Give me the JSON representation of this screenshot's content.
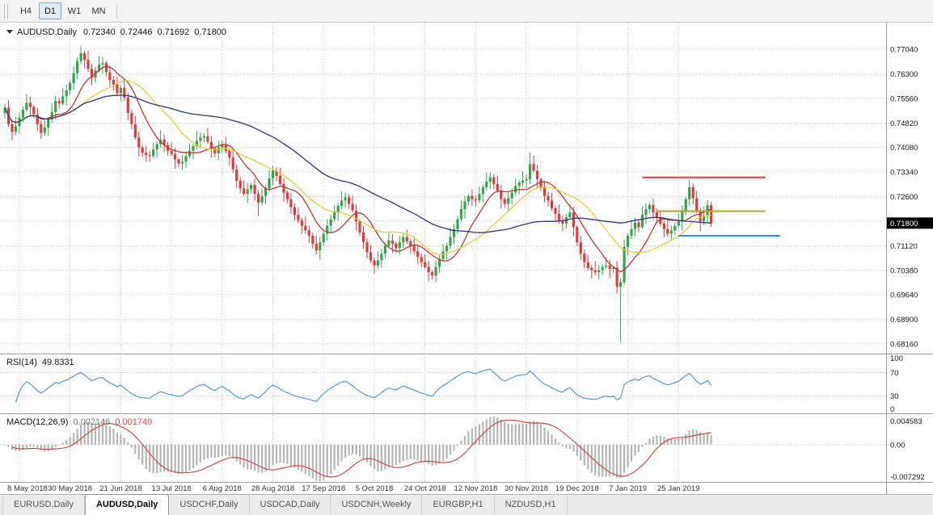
{
  "toolbar": {
    "buttons": [
      {
        "label": "H4",
        "active": false
      },
      {
        "label": "D1",
        "active": true
      },
      {
        "label": "W1",
        "active": false
      },
      {
        "label": "MN",
        "active": false
      }
    ]
  },
  "chart_header": {
    "symbol_period": "AUDUSD,Daily",
    "open": "0.72340",
    "high": "0.72446",
    "low": "0.71692",
    "close": "0.71800",
    "current_price": "0.71800"
  },
  "chart_data": {
    "type": "candlestick",
    "symbol": "AUDUSD",
    "timeframe": "Daily",
    "y_axis": {
      "ticks": [
        0.7704,
        0.763,
        0.7556,
        0.7482,
        0.7408,
        0.7334,
        0.726,
        0.7186,
        0.7112,
        0.7038,
        0.6964,
        0.689,
        0.6816
      ]
    },
    "x_axis": {
      "labels": [
        {
          "label": "8 May 2018",
          "bar": 4
        },
        {
          "label": "30 May 2018",
          "bar": 18
        },
        {
          "label": "21 Jun 2018",
          "bar": 32
        },
        {
          "label": "13 Jul 2018",
          "bar": 46
        },
        {
          "label": "6 Aug 2018",
          "bar": 60
        },
        {
          "label": "28 Aug 2018",
          "bar": 74
        },
        {
          "label": "17 Sep 2018",
          "bar": 88
        },
        {
          "label": "5 Oct 2018",
          "bar": 102
        },
        {
          "label": "24 Oct 2018",
          "bar": 116
        },
        {
          "label": "12 Nov 2018",
          "bar": 130
        },
        {
          "label": "30 Nov 2018",
          "bar": 144
        },
        {
          "label": "19 Dec 2018",
          "bar": 158
        },
        {
          "label": "7 Jan 2019",
          "bar": 172
        },
        {
          "label": "25 Jan 2019",
          "bar": 186
        }
      ]
    },
    "candles": {
      "open_rule": "previous_close",
      "first_open": 0.7512,
      "closes": [
        0.7528,
        0.7478,
        0.7455,
        0.7472,
        0.7498,
        0.7522,
        0.7543,
        0.753,
        0.7508,
        0.7478,
        0.7452,
        0.7468,
        0.7492,
        0.7515,
        0.7548,
        0.754,
        0.7562,
        0.758,
        0.7602,
        0.7632,
        0.7668,
        0.7692,
        0.7672,
        0.7645,
        0.7618,
        0.764,
        0.7658,
        0.7662,
        0.7635,
        0.7612,
        0.7598,
        0.7572,
        0.7588,
        0.7558,
        0.7512,
        0.7478,
        0.7438,
        0.7408,
        0.7392,
        0.7385,
        0.7382,
        0.7402,
        0.7418,
        0.7432,
        0.7415,
        0.7398,
        0.7388,
        0.7372,
        0.736,
        0.7365,
        0.7382,
        0.7398,
        0.7412,
        0.7428,
        0.7438,
        0.7442,
        0.7425,
        0.7405,
        0.739,
        0.7408,
        0.7418,
        0.7398,
        0.7378,
        0.7342,
        0.7308,
        0.7285,
        0.7268,
        0.7282,
        0.7295,
        0.7268,
        0.7242,
        0.7262,
        0.7285,
        0.7315,
        0.7338,
        0.7322,
        0.7298,
        0.7272,
        0.7252,
        0.7228,
        0.7205,
        0.7188,
        0.7172,
        0.7158,
        0.7142,
        0.7118,
        0.7098,
        0.7122,
        0.7148,
        0.7172,
        0.7192,
        0.7212,
        0.7232,
        0.7248,
        0.7258,
        0.7238,
        0.7218,
        0.7185,
        0.7152,
        0.7122,
        0.7092,
        0.7068,
        0.7052,
        0.7068,
        0.7088,
        0.7112,
        0.7128,
        0.7118,
        0.7105,
        0.7122,
        0.7138,
        0.7125,
        0.7112,
        0.7095,
        0.7078,
        0.7062,
        0.7048,
        0.7032,
        0.7022,
        0.7048,
        0.7072,
        0.7095,
        0.7112,
        0.7138,
        0.7162,
        0.7192,
        0.7222,
        0.7245,
        0.7262,
        0.7252,
        0.7248,
        0.7268,
        0.7288,
        0.7305,
        0.7318,
        0.7298,
        0.7278,
        0.7252,
        0.7238,
        0.7255,
        0.7272,
        0.7292,
        0.7302,
        0.7308,
        0.7312,
        0.7358,
        0.7338,
        0.7312,
        0.7288,
        0.7262,
        0.7248,
        0.7225,
        0.7208,
        0.7188,
        0.7178,
        0.7198,
        0.7212,
        0.7168,
        0.7122,
        0.7088,
        0.7062,
        0.7045,
        0.7038,
        0.7032,
        0.7038,
        0.7048,
        0.7052,
        0.7042,
        0.7046,
        0.6988,
        0.7002,
        0.7108,
        0.7142,
        0.7162,
        0.7182,
        0.7168,
        0.7205,
        0.7222,
        0.7235,
        0.7212,
        0.7198,
        0.7178,
        0.7162,
        0.7148,
        0.7158,
        0.7172,
        0.7185,
        0.7215,
        0.7252,
        0.7288,
        0.7255,
        0.7218,
        0.7185,
        0.7202,
        0.7234,
        0.718
      ],
      "wick_high_pips": [
        12,
        22,
        8,
        28,
        15,
        10,
        25,
        18,
        6,
        20,
        12,
        22,
        8,
        28,
        15,
        10,
        25,
        18,
        6,
        20,
        12,
        22,
        8,
        28,
        15,
        10,
        25,
        18,
        6,
        20,
        12,
        22,
        8,
        28,
        15,
        10,
        25,
        18,
        6,
        20,
        12,
        22,
        8,
        28,
        15,
        10,
        25,
        18,
        6,
        20,
        12,
        22,
        8,
        28,
        15,
        10,
        25,
        18,
        6,
        20,
        12,
        22,
        8,
        28,
        15,
        10,
        25,
        18,
        6,
        20,
        12,
        22,
        8,
        28,
        15,
        10,
        25,
        18,
        6,
        20,
        12,
        22,
        8,
        28,
        15,
        10,
        25,
        18,
        6,
        20,
        12,
        22,
        8,
        28,
        15,
        10,
        25,
        18,
        6,
        20,
        12,
        22,
        8,
        28,
        15,
        10,
        25,
        18,
        6,
        20,
        12,
        22,
        8,
        28,
        15,
        10,
        25,
        18,
        6,
        20,
        12,
        22,
        8,
        28,
        15,
        10,
        25,
        18,
        6,
        20,
        12,
        22,
        8,
        28,
        15,
        10,
        25,
        18,
        6,
        20,
        12,
        22,
        8,
        28,
        15,
        34,
        25,
        18,
        6,
        20,
        12,
        22,
        8,
        28,
        15,
        10,
        25,
        18,
        6,
        20,
        12,
        22,
        8,
        28,
        15,
        10,
        25,
        18,
        6,
        20,
        12,
        22,
        8,
        28,
        15,
        10,
        25,
        18,
        6,
        20,
        12,
        22,
        8,
        28,
        15,
        10,
        25,
        18,
        6,
        22,
        12,
        22,
        8,
        28,
        15,
        11
      ],
      "wick_low_pips": [
        18,
        8,
        25,
        10,
        22,
        15,
        6,
        28,
        12,
        20,
        18,
        8,
        25,
        10,
        22,
        15,
        6,
        28,
        12,
        20,
        18,
        8,
        25,
        10,
        22,
        15,
        6,
        28,
        12,
        20,
        18,
        8,
        25,
        10,
        22,
        15,
        6,
        28,
        12,
        20,
        18,
        8,
        25,
        10,
        22,
        15,
        6,
        28,
        12,
        20,
        18,
        8,
        25,
        10,
        22,
        15,
        6,
        28,
        12,
        20,
        18,
        8,
        25,
        10,
        22,
        15,
        6,
        28,
        12,
        20,
        40,
        8,
        25,
        10,
        22,
        15,
        6,
        28,
        12,
        20,
        18,
        8,
        25,
        10,
        22,
        15,
        13,
        28,
        12,
        20,
        18,
        8,
        25,
        10,
        22,
        15,
        6,
        28,
        12,
        20,
        18,
        8,
        25,
        10,
        22,
        15,
        6,
        28,
        12,
        20,
        18,
        8,
        25,
        10,
        22,
        15,
        6,
        28,
        12,
        20,
        18,
        8,
        25,
        10,
        22,
        15,
        6,
        28,
        12,
        20,
        18,
        8,
        25,
        10,
        22,
        15,
        6,
        28,
        12,
        20,
        18,
        8,
        25,
        10,
        22,
        15,
        6,
        28,
        12,
        20,
        18,
        8,
        25,
        10,
        22,
        15,
        6,
        28,
        12,
        20,
        18,
        8,
        25,
        10,
        22,
        15,
        6,
        28,
        12,
        20,
        168,
        8,
        25,
        10,
        22,
        15,
        6,
        28,
        12,
        20,
        18,
        8,
        25,
        10,
        22,
        15,
        6,
        28,
        12,
        20,
        18,
        8,
        30,
        10,
        22,
        11
      ]
    },
    "moving_averages": [
      {
        "type": "sma",
        "period": 10,
        "color": "#c43434"
      },
      {
        "type": "sma",
        "period": 21,
        "color": "#e3cd3a"
      },
      {
        "type": "sma",
        "period": 55,
        "color": "#2b3580"
      }
    ],
    "horizontal_lines": [
      {
        "price": 0.7318,
        "from_bar": 176,
        "to_bar": 210,
        "color": "#d64040"
      },
      {
        "price": 0.7216,
        "from_bar": 180,
        "to_bar": 210,
        "color": "#a8a832"
      },
      {
        "price": 0.7142,
        "from_bar": 186,
        "to_bar": 214,
        "color": "#2492ff"
      }
    ],
    "rsi": {
      "label": "RSI(14)",
      "value": "49.8331",
      "period": 14,
      "levels": [
        100,
        70,
        30,
        0
      ],
      "color": "#5599d8"
    },
    "macd": {
      "label": "MACD(12,26,9)",
      "value_main": "0.002146",
      "value_signal": "0.001749",
      "fast": 12,
      "slow": 26,
      "signal": 9,
      "axis_labels": {
        "top": "0.004583",
        "zero": "0.00",
        "bottom": "-0.007292"
      },
      "hist_color": "#b5b5b5",
      "signal_color": "#cf4b4b"
    },
    "colors": {
      "up": "#33a64c",
      "down": "#e23b3b",
      "badge_bg": "#000000",
      "badge_text": "#ffffff"
    }
  },
  "tabs": {
    "items": [
      {
        "label": "EURUSD,Daily",
        "active": false
      },
      {
        "label": "AUDUSD,Daily",
        "active": true
      },
      {
        "label": "USDCHF,Daily",
        "active": false
      },
      {
        "label": "USDCAD,Daily",
        "active": false
      },
      {
        "label": "USDCNH,Weekly",
        "active": false
      },
      {
        "label": "EURGBP,H1",
        "active": false
      },
      {
        "label": "NZDUSD,H1",
        "active": false
      }
    ]
  }
}
